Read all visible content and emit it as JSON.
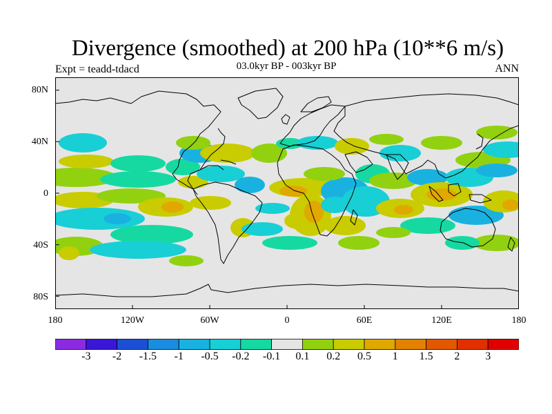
{
  "title": "Divergence (smoothed) at 200 hPa (10**6 m/s)",
  "experiment": "Expt = teadd-tdacd",
  "period": "03.0kyr BP - 003kyr BP",
  "season": "ANN",
  "lat_labels": [
    "80N",
    "40N",
    "0",
    "40S",
    "80S"
  ],
  "lon_labels": [
    "180",
    "120W",
    "60W",
    "0",
    "60E",
    "120E",
    "180"
  ],
  "colorbar": {
    "labels": [
      "-3",
      "-2",
      "-1.5",
      "-1",
      "-0.5",
      "-0.2",
      "-0.1",
      "0.1",
      "0.2",
      "0.5",
      "1",
      "1.5",
      "2",
      "3"
    ],
    "colors": [
      "#8a2be2",
      "#3a16d6",
      "#1a4fd6",
      "#1a8de0",
      "#19b2e0",
      "#18cfd5",
      "#16d9a2",
      "#e5e5e5",
      "#92d10f",
      "#c8cc00",
      "#e0a800",
      "#e38200",
      "#e15800",
      "#e03000",
      "#e00000"
    ]
  },
  "map": {
    "ocean_color": "#e5e5e5",
    "coast_color": "#000000"
  }
}
